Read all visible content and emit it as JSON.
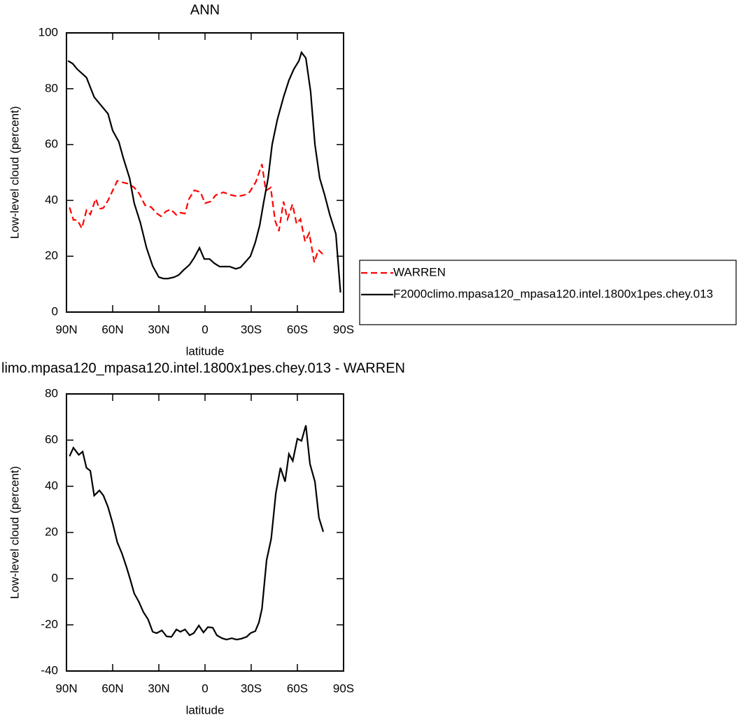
{
  "chart_data": [
    {
      "type": "line",
      "title": "ANN",
      "xlabel": "latitude",
      "ylabel": "Low-level cloud (percent)",
      "xlim": [
        90,
        -90
      ],
      "ylim": [
        0,
        100
      ],
      "xticks": [
        {
          "value": 90,
          "label": "90N"
        },
        {
          "value": 60,
          "label": "60N"
        },
        {
          "value": 30,
          "label": "30N"
        },
        0,
        {
          "value": -30,
          "label": "30S"
        },
        {
          "value": -60,
          "label": "60S"
        },
        {
          "value": -90,
          "label": "90S"
        }
      ],
      "yticks": [
        0,
        20,
        40,
        60,
        80,
        100
      ],
      "legend": "outside-right",
      "series": [
        {
          "name": "WARREN",
          "color": "#ff0000",
          "style": "dashed",
          "x": [
            88,
            85.5,
            83,
            80,
            77,
            74.5,
            71,
            68.6,
            66,
            63,
            57,
            53,
            50,
            46,
            42.7,
            39,
            35,
            31.4,
            28.6,
            25.5,
            22.3,
            18.6,
            16,
            13,
            10.5,
            7,
            3,
            0,
            -3.6,
            -7,
            -12,
            -17,
            -21.4,
            -26,
            -29,
            -33,
            -37,
            -39.5,
            -42.7,
            -45.5,
            -48,
            -51,
            -53.6,
            -56.8,
            -59.5,
            -62,
            -65,
            -67.7,
            -71,
            -73.6,
            -76.4
          ],
          "values": [
            37.5,
            33,
            33,
            30,
            36.5,
            35,
            40.6,
            37,
            37.3,
            40,
            47,
            46.4,
            46,
            44.6,
            42.4,
            38.3,
            37.6,
            35.4,
            34.3,
            36,
            36.8,
            34.8,
            35.6,
            35.3,
            40.4,
            43.6,
            43,
            39,
            39.6,
            41.9,
            42.9,
            41.9,
            41.4,
            42,
            43,
            46.6,
            53,
            43.4,
            44.6,
            32.8,
            29,
            39.6,
            33.3,
            38.6,
            31.6,
            33.3,
            25.3,
            28.3,
            17.8,
            22.3,
            20.8
          ]
        },
        {
          "name": "F2000climo.mpasa120_mpasa120.intel.1800x1pes.chey.013",
          "color": "#000000",
          "style": "solid",
          "x": [
            89,
            86,
            83,
            77,
            72,
            66,
            63,
            60,
            56,
            53,
            49,
            46,
            42,
            38,
            34,
            30,
            27,
            24,
            20,
            17,
            14,
            10,
            7,
            3.6,
            0.5,
            -3,
            -6,
            -9.5,
            -16,
            -20,
            -23,
            -26,
            -29.5,
            -32.7,
            -35.5,
            -38,
            -41,
            -43.6,
            -47,
            -51,
            -54.5,
            -57.7,
            -61,
            -62.7,
            -65.5,
            -68.6,
            -71.4,
            -74.5,
            -77.7,
            -81,
            -85,
            -88
          ],
          "values": [
            90,
            89,
            87,
            84,
            77,
            73,
            71,
            65,
            61,
            55,
            48,
            39,
            32,
            23,
            16.5,
            12.5,
            12,
            12,
            12.5,
            13.3,
            15,
            17,
            19.5,
            23,
            19,
            19,
            17.5,
            16.3,
            16.3,
            15.5,
            16,
            17.8,
            20,
            25,
            31,
            39,
            48,
            60,
            69,
            77,
            83,
            87,
            90,
            93,
            91,
            79,
            60,
            48,
            42,
            35,
            28,
            7
          ]
        }
      ]
    },
    {
      "type": "line",
      "title": "limo.mpasa120_mpasa120.intel.1800x1pes.chey.013 - WARREN",
      "xlabel": "latitude",
      "ylabel": "Low-level cloud (percent)",
      "xlim": [
        90,
        -90
      ],
      "ylim": [
        -40,
        80
      ],
      "xticks": [
        {
          "value": 90,
          "label": "90N"
        },
        {
          "value": 60,
          "label": "60N"
        },
        {
          "value": 30,
          "label": "30N"
        },
        0,
        {
          "value": -30,
          "label": "30S"
        },
        {
          "value": -60,
          "label": "60S"
        },
        {
          "value": -90,
          "label": "90S"
        }
      ],
      "yticks": [
        -40,
        -20,
        0,
        20,
        40,
        60,
        80
      ],
      "series": [
        {
          "color": "#000000",
          "style": "solid",
          "x": [
            88,
            85.5,
            82,
            79.5,
            77,
            74.5,
            72,
            68.6,
            66,
            63,
            60,
            57,
            54,
            51,
            48.6,
            46,
            43,
            40,
            37,
            34,
            31.4,
            28,
            25,
            21.8,
            18.6,
            16,
            13,
            10,
            7.3,
            4,
            1,
            -1.8,
            -5,
            -7.7,
            -11,
            -14,
            -17.3,
            -20.5,
            -23.6,
            -27,
            -29.5,
            -32.7,
            -35,
            -37,
            -40,
            -43,
            -46,
            -49,
            -52,
            -54.5,
            -57,
            -60,
            -62.7,
            -65.5,
            -68.2,
            -71.4,
            -74,
            -76.8
          ],
          "values": [
            53,
            56.7,
            53.6,
            55,
            48,
            46.7,
            36,
            38.2,
            36,
            31,
            24,
            15.8,
            11,
            5,
            -0.3,
            -6.4,
            -10,
            -14.5,
            -17.6,
            -23,
            -23.6,
            -22.4,
            -25,
            -25.2,
            -22,
            -23,
            -22,
            -24.5,
            -23.6,
            -20.3,
            -23.3,
            -21,
            -21.2,
            -24.5,
            -25.8,
            -26.4,
            -25.8,
            -26.4,
            -26,
            -25.2,
            -23.6,
            -22.7,
            -19,
            -13,
            8,
            17.3,
            37,
            48,
            42,
            54,
            51,
            60.6,
            59.7,
            66.4,
            49.7,
            42,
            26.4,
            20.3
          ]
        }
      ]
    }
  ]
}
